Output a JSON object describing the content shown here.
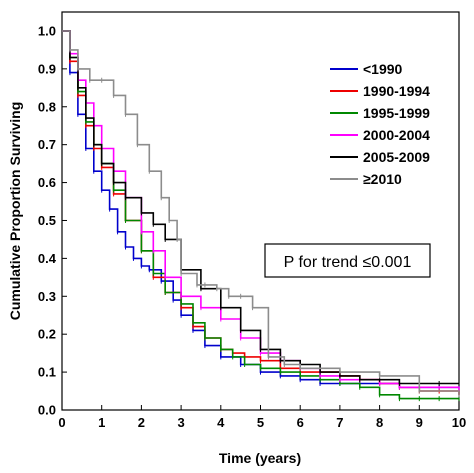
{
  "chart_data": {
    "type": "line",
    "xlabel": "Time (years)",
    "ylabel": "Cumulative Proportion Surviving",
    "xlim": [
      0,
      10
    ],
    "ylim": [
      0,
      1.05
    ],
    "xticks": [
      "0",
      "1",
      "2",
      "3",
      "4",
      "5",
      "6",
      "7",
      "8",
      "9",
      "10"
    ],
    "yticks": [
      "0.0",
      "0.1",
      "0.2",
      "0.3",
      "0.4",
      "0.5",
      "0.6",
      "0.7",
      "0.8",
      "0.9",
      "1.0"
    ],
    "grid": false,
    "legend_position": "top-right",
    "annotation": "P for trend ≤0.001",
    "series": [
      {
        "name": "<1990",
        "color": "#0000cc",
        "x": [
          0,
          0.2,
          0.4,
          0.6,
          0.8,
          1.0,
          1.2,
          1.4,
          1.6,
          1.8,
          2.0,
          2.2,
          2.5,
          2.8,
          3.0,
          3.3,
          3.6,
          4.0,
          4.5,
          5.0,
          5.5,
          6.0,
          6.5,
          7.0,
          7.5,
          8.0,
          8.5,
          9.0,
          9.5,
          10.0
        ],
        "y": [
          1.0,
          0.89,
          0.78,
          0.69,
          0.63,
          0.58,
          0.53,
          0.47,
          0.43,
          0.4,
          0.38,
          0.37,
          0.34,
          0.29,
          0.25,
          0.21,
          0.17,
          0.14,
          0.12,
          0.1,
          0.09,
          0.08,
          0.07,
          0.07,
          0.07,
          0.07,
          0.06,
          0.06,
          0.06,
          0.06
        ]
      },
      {
        "name": "1990-1994",
        "color": "#ee0000",
        "x": [
          0,
          0.2,
          0.4,
          0.6,
          0.8,
          1.0,
          1.3,
          1.6,
          2.0,
          2.3,
          2.6,
          3.0,
          3.3,
          3.6,
          4.0,
          4.3,
          4.6,
          5.0,
          5.5,
          6.0,
          6.5,
          7.0,
          7.5,
          8.0,
          8.5,
          9.0,
          9.5,
          10.0
        ],
        "y": [
          1.0,
          0.92,
          0.83,
          0.75,
          0.69,
          0.64,
          0.57,
          0.5,
          0.42,
          0.35,
          0.31,
          0.27,
          0.22,
          0.19,
          0.16,
          0.15,
          0.14,
          0.13,
          0.11,
          0.1,
          0.1,
          0.09,
          0.08,
          0.07,
          0.06,
          0.05,
          0.05,
          0.04
        ]
      },
      {
        "name": "1995-1999",
        "color": "#008800",
        "x": [
          0,
          0.2,
          0.4,
          0.6,
          0.8,
          1.0,
          1.3,
          1.6,
          2.0,
          2.3,
          2.6,
          3.0,
          3.3,
          3.6,
          4.0,
          4.3,
          4.6,
          5.0,
          5.5,
          6.0,
          6.5,
          7.0,
          7.5,
          8.0,
          8.5,
          9.0,
          9.5,
          10.0
        ],
        "y": [
          1.0,
          0.93,
          0.84,
          0.76,
          0.7,
          0.65,
          0.58,
          0.5,
          0.42,
          0.36,
          0.31,
          0.28,
          0.23,
          0.19,
          0.16,
          0.14,
          0.12,
          0.11,
          0.1,
          0.09,
          0.08,
          0.07,
          0.06,
          0.04,
          0.03,
          0.03,
          0.03,
          0.03
        ]
      },
      {
        "name": "2000-2004",
        "color": "#ff00ff",
        "x": [
          0,
          0.2,
          0.4,
          0.6,
          0.8,
          1.0,
          1.3,
          1.6,
          2.0,
          2.3,
          2.6,
          3.0,
          3.5,
          4.0,
          4.5,
          5.0,
          5.5,
          6.0,
          6.5,
          7.0,
          7.5,
          8.0,
          8.5,
          9.0,
          9.5,
          10.0
        ],
        "y": [
          1.0,
          0.94,
          0.87,
          0.81,
          0.75,
          0.69,
          0.63,
          0.56,
          0.47,
          0.42,
          0.35,
          0.3,
          0.27,
          0.24,
          0.19,
          0.15,
          0.13,
          0.11,
          0.09,
          0.08,
          0.08,
          0.07,
          0.06,
          0.06,
          0.06,
          0.05
        ]
      },
      {
        "name": "2005-2009",
        "color": "#000000",
        "x": [
          0,
          0.2,
          0.4,
          0.6,
          0.8,
          1.0,
          1.3,
          1.6,
          2.0,
          2.3,
          2.6,
          3.0,
          3.5,
          4.0,
          4.5,
          5.0,
          5.5,
          6.0,
          6.5,
          7.0,
          7.5,
          8.0,
          8.5,
          9.0,
          9.5,
          10.0
        ],
        "y": [
          1.0,
          0.93,
          0.85,
          0.77,
          0.7,
          0.65,
          0.6,
          0.56,
          0.52,
          0.49,
          0.45,
          0.37,
          0.32,
          0.27,
          0.21,
          0.16,
          0.13,
          0.12,
          0.1,
          0.09,
          0.08,
          0.08,
          0.07,
          0.07,
          0.07,
          0.07
        ]
      },
      {
        "name": "≥2010",
        "color": "#8c8c8c",
        "x": [
          0,
          0.2,
          0.4,
          0.7,
          1.0,
          1.3,
          1.6,
          1.9,
          2.2,
          2.5,
          2.7,
          2.9,
          3.0,
          3.4,
          3.6,
          3.9,
          4.2,
          4.5,
          4.8,
          5.2,
          5.6,
          6.0,
          7.0,
          8.0,
          9.0,
          10.0
        ],
        "y": [
          1.0,
          0.95,
          0.9,
          0.87,
          0.87,
          0.83,
          0.78,
          0.7,
          0.63,
          0.56,
          0.5,
          0.45,
          0.36,
          0.33,
          0.33,
          0.32,
          0.3,
          0.3,
          0.27,
          0.14,
          0.12,
          0.11,
          0.1,
          0.09,
          0.05,
          0.04
        ]
      }
    ]
  }
}
